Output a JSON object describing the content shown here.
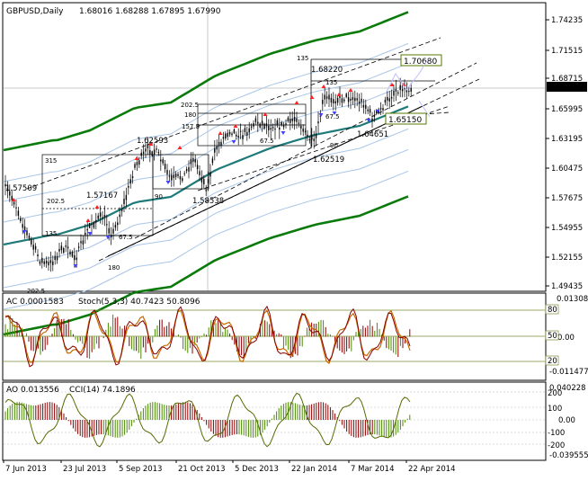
{
  "window": {
    "title": "GBPUSD,Daily",
    "ohlc": [
      "1.68016",
      "1.68288",
      "1.67895",
      "1.67990"
    ]
  },
  "colors": {
    "main_border": "#000000",
    "grid": "#c8c8c8",
    "price_candle": "#000000",
    "envelope_dark": "#0a7a0a",
    "envelope_light": "#a9c6e8",
    "ma_teal": "#1f7a7a",
    "dashed_channel": "#000000",
    "fractal_up": "#ff2020",
    "fractal_down": "#4040ff",
    "current_price_bg": "#000000",
    "label_bg": "#ffffff",
    "green_label_border": "#557a00",
    "ac_stoch_fast": "#c86a00",
    "ac_stoch_slow": "#8a0000",
    "ac_bars_up": "#4a8a00",
    "ac_bars_down": "#8a0000",
    "ao_bars_up": "#4a8a00",
    "ao_bars_down": "#8a0000",
    "cci_line": "#556b00"
  },
  "main_panel": {
    "y_axis_ticks": [
      "1.74235",
      "1.71515",
      "1.68715",
      "1.65995",
      "1.63195",
      "1.60475",
      "1.57675",
      "1.54955",
      "1.52155",
      "1.49435"
    ],
    "current_price": "1.67990",
    "annotations": [
      {
        "text": "1.57509"
      },
      {
        "text": "1.62593"
      },
      {
        "text": "1.57167"
      },
      {
        "text": "1.58538"
      },
      {
        "text": "1.68220"
      },
      {
        "text": "1.64651"
      },
      {
        "text": "1.62519"
      }
    ],
    "boxed_labels": [
      "1.70680",
      "1.65150"
    ],
    "fib_labels": [
      "315",
      "202.5",
      "135",
      "67.5",
      "90",
      "202.5",
      "180",
      "157.5",
      "67.5",
      "135",
      "67.5",
      "180",
      "135",
      "90",
      "202.5"
    ]
  },
  "ac_panel": {
    "label": "AC 0.0001583",
    "stoch_label": "Stoch(5,3,3) 40.7423 50.8096",
    "right_labels": [
      "0.013082",
      "0.00",
      "-0.011477"
    ],
    "levels": [
      "80",
      "50",
      "20"
    ]
  },
  "ao_panel": {
    "label": "AO 0.013556",
    "cci_label": "CCI(14) 74.1896",
    "right_labels": [
      "0.040228",
      "0.00",
      "-0.039555"
    ],
    "levels": [
      "200",
      "100",
      "0.00",
      "-100",
      "-200"
    ]
  },
  "x_axis": {
    "ticks": [
      "7 Jun 2013",
      "23 Jul 2013",
      "5 Sep 2013",
      "21 Oct 2013",
      "5 Dec 2013",
      "22 Jan 2014",
      "7 Mar 2014",
      "22 Apr 2014"
    ]
  },
  "chart_data": {
    "type": "candlestick",
    "title": "GBPUSD,Daily",
    "ylim": [
      1.49435,
      1.74235
    ],
    "dates": [
      "7 Jun 2013",
      "23 Jul 2013",
      "5 Sep 2013",
      "21 Oct 2013",
      "5 Dec 2013",
      "22 Jan 2014",
      "7 Mar 2014",
      "22 Apr 2014"
    ],
    "close_path": [
      {
        "date": "7 Jun 2013",
        "value": 1.5675
      },
      {
        "date": "23 Jul 2013",
        "value": 1.535
      },
      {
        "date": "5 Sep 2013",
        "value": 1.575
      },
      {
        "date": "21 Oct 2013",
        "value": 1.615
      },
      {
        "date": "5 Dec 2013",
        "value": 1.64
      },
      {
        "date": "22 Jan 2014",
        "value": 1.65
      },
      {
        "date": "7 Mar 2014",
        "value": 1.66
      },
      {
        "date": "22 Apr 2014",
        "value": 1.6799
      }
    ],
    "key_levels": [
      1.57509,
      1.62593,
      1.57167,
      1.58538,
      1.6822,
      1.64651,
      1.62519,
      1.7068,
      1.6515
    ],
    "indicators": [
      {
        "name": "AC",
        "value": 0.0001583
      },
      {
        "name": "Stoch(5,3,3)",
        "values": [
          40.7423,
          50.8096
        ]
      },
      {
        "name": "AO",
        "value": 0.013556
      },
      {
        "name": "CCI(14)",
        "value": 74.1896
      }
    ]
  }
}
